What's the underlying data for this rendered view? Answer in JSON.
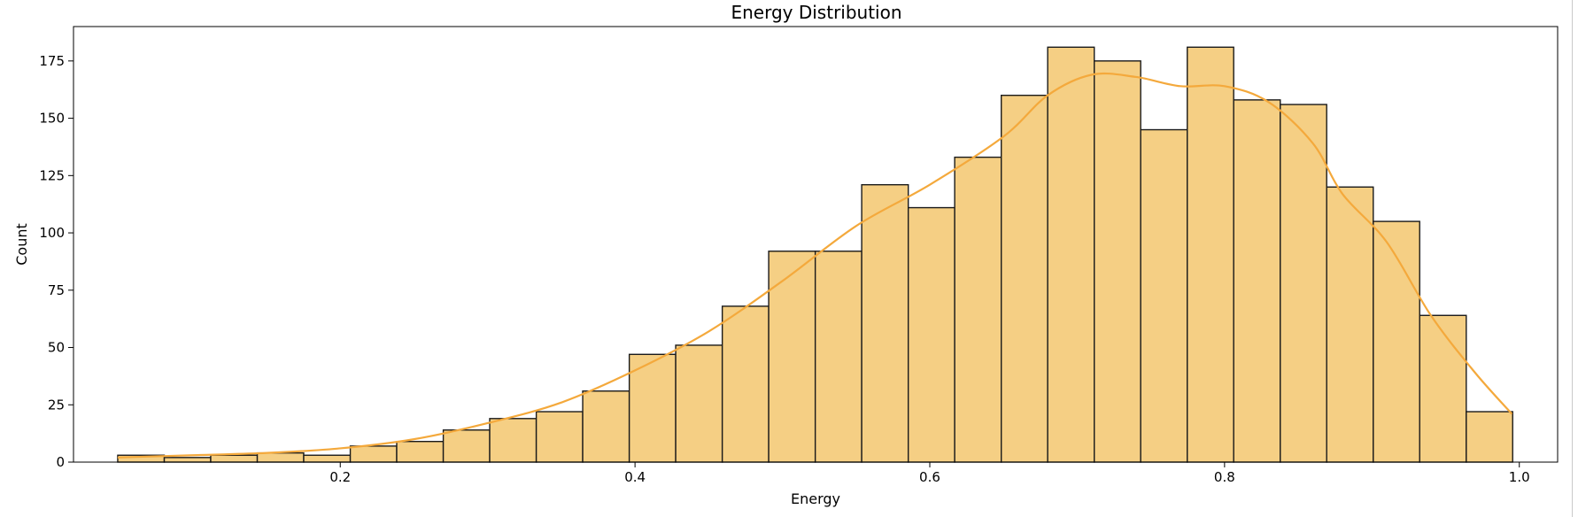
{
  "chart_data": {
    "type": "histogram",
    "title": "Energy Distribution",
    "xlabel": "Energy",
    "ylabel": "Count",
    "xlim": [
      0.019,
      1.026
    ],
    "ylim": [
      0,
      190
    ],
    "xticks": [
      0.2,
      0.4,
      0.6,
      0.8,
      1.0
    ],
    "xtick_labels": [
      "0.2",
      "0.4",
      "0.6",
      "0.8",
      "1.0"
    ],
    "yticks": [
      0,
      25,
      50,
      75,
      100,
      125,
      150,
      175
    ],
    "ytick_labels": [
      "0",
      "25",
      "50",
      "75",
      "100",
      "125",
      "150",
      "175"
    ],
    "bar_color": "#f5cf84",
    "edge_color": "#1a1a1a",
    "kde_color": "#f4a93c",
    "bins": [
      {
        "x0": 0.049,
        "x1": 0.0806,
        "count": 3
      },
      {
        "x0": 0.0806,
        "x1": 0.1121,
        "count": 2
      },
      {
        "x0": 0.1121,
        "x1": 0.1437,
        "count": 3
      },
      {
        "x0": 0.1437,
        "x1": 0.1752,
        "count": 4
      },
      {
        "x0": 0.1752,
        "x1": 0.2068,
        "count": 3
      },
      {
        "x0": 0.2068,
        "x1": 0.2383,
        "count": 7
      },
      {
        "x0": 0.2383,
        "x1": 0.2699,
        "count": 9
      },
      {
        "x0": 0.2699,
        "x1": 0.3014,
        "count": 14
      },
      {
        "x0": 0.3014,
        "x1": 0.333,
        "count": 19
      },
      {
        "x0": 0.333,
        "x1": 0.3645,
        "count": 22
      },
      {
        "x0": 0.3645,
        "x1": 0.3961,
        "count": 31
      },
      {
        "x0": 0.3961,
        "x1": 0.4276,
        "count": 47
      },
      {
        "x0": 0.4276,
        "x1": 0.4592,
        "count": 51
      },
      {
        "x0": 0.4592,
        "x1": 0.4907,
        "count": 68
      },
      {
        "x0": 0.4907,
        "x1": 0.5223,
        "count": 92
      },
      {
        "x0": 0.5223,
        "x1": 0.5538,
        "count": 92
      },
      {
        "x0": 0.5538,
        "x1": 0.5854,
        "count": 121
      },
      {
        "x0": 0.5854,
        "x1": 0.6169,
        "count": 111
      },
      {
        "x0": 0.6169,
        "x1": 0.6485,
        "count": 133
      },
      {
        "x0": 0.6485,
        "x1": 0.68,
        "count": 160
      },
      {
        "x0": 0.68,
        "x1": 0.7116,
        "count": 181
      },
      {
        "x0": 0.7116,
        "x1": 0.7431,
        "count": 175
      },
      {
        "x0": 0.7431,
        "x1": 0.7747,
        "count": 145
      },
      {
        "x0": 0.7747,
        "x1": 0.8062,
        "count": 181
      },
      {
        "x0": 0.8062,
        "x1": 0.8378,
        "count": 158
      },
      {
        "x0": 0.8378,
        "x1": 0.8693,
        "count": 156
      },
      {
        "x0": 0.8693,
        "x1": 0.9009,
        "count": 120
      },
      {
        "x0": 0.9009,
        "x1": 0.9324,
        "count": 105
      },
      {
        "x0": 0.9324,
        "x1": 0.964,
        "count": 64
      },
      {
        "x0": 0.964,
        "x1": 0.9955,
        "count": 22
      }
    ],
    "kde": {
      "x": [
        0.049,
        0.1,
        0.15,
        0.2,
        0.25,
        0.3,
        0.35,
        0.4,
        0.45,
        0.5,
        0.55,
        0.6,
        0.65,
        0.68,
        0.71,
        0.74,
        0.77,
        0.8,
        0.83,
        0.86,
        0.88,
        0.91,
        0.94,
        0.97,
        0.995
      ],
      "y": [
        2,
        3,
        4,
        6,
        10,
        17,
        26,
        40,
        57,
        79,
        103,
        121,
        142,
        160,
        169,
        168,
        164,
        164,
        157,
        139,
        117,
        96,
        64,
        39,
        21
      ]
    }
  }
}
